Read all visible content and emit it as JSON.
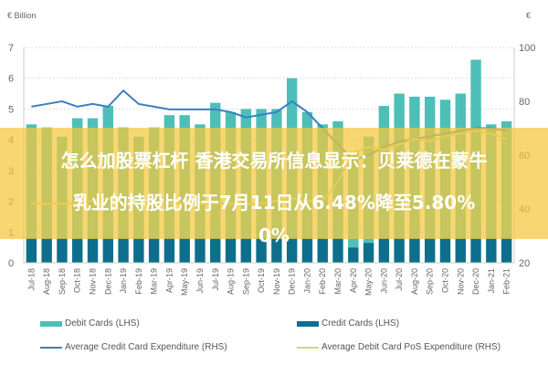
{
  "chart_data": {
    "type": "bar",
    "title": "",
    "ylabel": "€ Billion",
    "ylabel_right": "€",
    "ylim": [
      0,
      7
    ],
    "ylim_right": [
      20,
      100
    ],
    "yticks": [
      0,
      1,
      2,
      3,
      4,
      5,
      6,
      7
    ],
    "yticks_right": [
      20,
      40,
      60,
      80,
      100
    ],
    "grid": true,
    "legend_placement": "bottom",
    "categories": [
      "Jul-18",
      "Aug-18",
      "Sep-18",
      "Oct-18",
      "Nov-18",
      "Dec-18",
      "Jan-19",
      "Feb-19",
      "Mar-19",
      "Apr-19",
      "May-19",
      "Jun-19",
      "Jul-19",
      "Aug-19",
      "Sep-19",
      "Oct-19",
      "Nov-19",
      "Dec-19",
      "Jan-20",
      "Feb-20",
      "Mar-20",
      "Apr-20",
      "May-20",
      "Jun-20",
      "Jul-20",
      "Aug-20",
      "Sep-20",
      "Oct-20",
      "Nov-20",
      "Dec-20",
      "Jan-21",
      "Feb-21"
    ],
    "series": [
      {
        "name": "Debit Cards (LHS)",
        "kind": "stacked-bar",
        "axis": "left",
        "color": "#4dbfb8",
        "values": [
          3.7,
          3.6,
          3.3,
          3.9,
          3.9,
          4.3,
          3.6,
          3.3,
          3.6,
          4.0,
          4.0,
          3.7,
          4.4,
          4.1,
          4.2,
          4.2,
          4.2,
          5.2,
          4.1,
          3.7,
          3.8,
          3.1,
          3.45,
          4.3,
          4.7,
          4.6,
          4.6,
          4.5,
          4.7,
          5.8,
          3.7,
          3.8
        ]
      },
      {
        "name": "Credit Cards (LHS)",
        "kind": "stacked-bar",
        "axis": "left",
        "color": "#0d6f8c",
        "values": [
          0.8,
          0.8,
          0.8,
          0.8,
          0.8,
          0.8,
          0.8,
          0.8,
          0.8,
          0.8,
          0.8,
          0.8,
          0.8,
          0.8,
          0.8,
          0.8,
          0.8,
          0.8,
          0.8,
          0.8,
          0.8,
          0.5,
          0.65,
          0.8,
          0.8,
          0.8,
          0.8,
          0.8,
          0.8,
          0.8,
          0.8,
          0.8
        ]
      },
      {
        "name": "Average Credit Card Expenditure (RHS)",
        "kind": "line",
        "axis": "right",
        "color": "#3a7fc4",
        "values": [
          78,
          79,
          80,
          78,
          79,
          78,
          84,
          79,
          78,
          77,
          77,
          77,
          77,
          76,
          74,
          75,
          76,
          80,
          76,
          70,
          64,
          58,
          60,
          63,
          65,
          66,
          67,
          68,
          69,
          70,
          70,
          69
        ]
      },
      {
        "name": "Average Debit Card PoS Expenditure (RHS)",
        "kind": "line",
        "axis": "right",
        "color": "#c8d98a",
        "values": [
          42,
          42,
          42,
          42,
          43,
          44,
          42,
          42,
          42,
          42,
          42,
          42,
          42,
          42,
          42,
          42,
          43,
          44,
          43,
          43,
          50,
          61,
          63,
          62,
          64,
          66,
          65,
          67,
          68,
          69,
          68,
          66
        ]
      }
    ]
  },
  "banner": {
    "lines": [
      "怎么加股票杠杆 香港交易所信息显示：贝莱德在蒙牛",
      "乳业的持股比例于7月11日从6.48%降至5.80%",
      "0%"
    ],
    "color": "#f5c83c"
  }
}
